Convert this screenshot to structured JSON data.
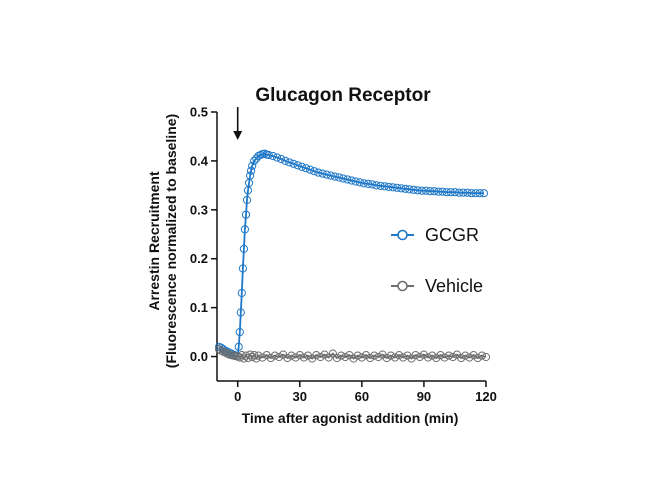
{
  "chart_data": {
    "type": "scatter",
    "title": "Glucagon Receptor",
    "xlabel": "Time after agonist addition (min)",
    "ylabel_line1": "Arrestin Recruitment",
    "ylabel_line2": "(Fluorescence normalized to baseline)",
    "xlim": [
      -10,
      120
    ],
    "ylim": [
      -0.05,
      0.5
    ],
    "x_ticks": [
      0,
      30,
      60,
      90,
      120
    ],
    "x_tick_labels": [
      "0",
      "30",
      "60",
      "90",
      "120"
    ],
    "y_ticks": [
      0.0,
      0.1,
      0.2,
      0.3,
      0.4,
      0.5
    ],
    "y_tick_labels": [
      "0.0",
      "0.1",
      "0.2",
      "0.3",
      "0.4",
      "0.5"
    ],
    "grid": false,
    "legend_position": "right",
    "annotation": {
      "type": "arrow",
      "x": 0
    },
    "series": [
      {
        "name": "GCGR",
        "color": "#1f78c8",
        "points": [
          [
            -9,
            0.02
          ],
          [
            -8,
            0.018
          ],
          [
            -7,
            0.015
          ],
          [
            -6,
            0.012
          ],
          [
            -5,
            0.01
          ],
          [
            -4,
            0.008
          ],
          [
            -3,
            0.006
          ],
          [
            -2,
            0.004
          ],
          [
            -1,
            0.002
          ],
          [
            0,
            0.0
          ],
          [
            0.5,
            0.02
          ],
          [
            1,
            0.05
          ],
          [
            1.5,
            0.09
          ],
          [
            2,
            0.13
          ],
          [
            2.5,
            0.18
          ],
          [
            3,
            0.22
          ],
          [
            3.5,
            0.26
          ],
          [
            4,
            0.29
          ],
          [
            4.5,
            0.32
          ],
          [
            5,
            0.34
          ],
          [
            5.5,
            0.355
          ],
          [
            6,
            0.37
          ],
          [
            6.5,
            0.38
          ],
          [
            7,
            0.39
          ],
          [
            8,
            0.4
          ],
          [
            9,
            0.405
          ],
          [
            10,
            0.41
          ],
          [
            11,
            0.412
          ],
          [
            12,
            0.414
          ],
          [
            13,
            0.415
          ],
          [
            14,
            0.413
          ],
          [
            15,
            0.412
          ],
          [
            17,
            0.41
          ],
          [
            19,
            0.407
          ],
          [
            21,
            0.404
          ],
          [
            23,
            0.4
          ],
          [
            25,
            0.397
          ],
          [
            27,
            0.394
          ],
          [
            29,
            0.391
          ],
          [
            31,
            0.388
          ],
          [
            33,
            0.385
          ],
          [
            35,
            0.382
          ],
          [
            37,
            0.379
          ],
          [
            39,
            0.376
          ],
          [
            41,
            0.374
          ],
          [
            43,
            0.372
          ],
          [
            45,
            0.37
          ],
          [
            47,
            0.368
          ],
          [
            49,
            0.366
          ],
          [
            51,
            0.364
          ],
          [
            53,
            0.362
          ],
          [
            55,
            0.36
          ],
          [
            57,
            0.358
          ],
          [
            59,
            0.356
          ],
          [
            61,
            0.354
          ],
          [
            63,
            0.353
          ],
          [
            65,
            0.352
          ],
          [
            67,
            0.35
          ],
          [
            69,
            0.349
          ],
          [
            71,
            0.348
          ],
          [
            73,
            0.347
          ],
          [
            75,
            0.346
          ],
          [
            77,
            0.345
          ],
          [
            79,
            0.344
          ],
          [
            81,
            0.343
          ],
          [
            83,
            0.342
          ],
          [
            85,
            0.341
          ],
          [
            87,
            0.34
          ],
          [
            89,
            0.339
          ],
          [
            91,
            0.339
          ],
          [
            93,
            0.338
          ],
          [
            95,
            0.338
          ],
          [
            97,
            0.337
          ],
          [
            99,
            0.337
          ],
          [
            101,
            0.336
          ],
          [
            103,
            0.336
          ],
          [
            105,
            0.336
          ],
          [
            107,
            0.335
          ],
          [
            109,
            0.335
          ],
          [
            111,
            0.335
          ],
          [
            113,
            0.334
          ],
          [
            115,
            0.334
          ],
          [
            117,
            0.334
          ],
          [
            119,
            0.334
          ]
        ]
      },
      {
        "name": "Vehicle",
        "color": "#6e6e6e",
        "points": [
          [
            -9,
            0.015
          ],
          [
            -8,
            0.012
          ],
          [
            -7,
            0.01
          ],
          [
            -6,
            0.008
          ],
          [
            -5,
            0.006
          ],
          [
            -4,
            0.004
          ],
          [
            -3,
            0.003
          ],
          [
            -2,
            0.002
          ],
          [
            -1,
            0.001
          ],
          [
            0,
            0.0
          ],
          [
            1,
            -0.002
          ],
          [
            2,
            0.003
          ],
          [
            3,
            -0.004
          ],
          [
            4,
            0.002
          ],
          [
            5,
            -0.003
          ],
          [
            6,
            0.004
          ],
          [
            7,
            -0.001
          ],
          [
            8,
            0.003
          ],
          [
            9,
            -0.004
          ],
          [
            10,
            0.002
          ],
          [
            12,
            -0.002
          ],
          [
            14,
            0.003
          ],
          [
            16,
            -0.003
          ],
          [
            18,
            0.002
          ],
          [
            20,
            -0.001
          ],
          [
            22,
            0.004
          ],
          [
            24,
            -0.003
          ],
          [
            26,
            0.002
          ],
          [
            28,
            -0.002
          ],
          [
            30,
            0.003
          ],
          [
            32,
            -0.002
          ],
          [
            34,
            0.002
          ],
          [
            36,
            -0.004
          ],
          [
            38,
            0.003
          ],
          [
            40,
            -0.001
          ],
          [
            42,
            0.004
          ],
          [
            44,
            -0.002
          ],
          [
            46,
            0.006
          ],
          [
            48,
            -0.003
          ],
          [
            50,
            0.002
          ],
          [
            52,
            -0.001
          ],
          [
            54,
            0.003
          ],
          [
            56,
            -0.004
          ],
          [
            58,
            0.002
          ],
          [
            60,
            -0.002
          ],
          [
            62,
            0.003
          ],
          [
            64,
            -0.003
          ],
          [
            66,
            0.002
          ],
          [
            68,
            -0.001
          ],
          [
            70,
            0.004
          ],
          [
            72,
            -0.003
          ],
          [
            74,
            0.002
          ],
          [
            76,
            -0.002
          ],
          [
            78,
            0.003
          ],
          [
            80,
            -0.002
          ],
          [
            82,
            0.002
          ],
          [
            84,
            -0.004
          ],
          [
            86,
            0.003
          ],
          [
            88,
            -0.001
          ],
          [
            90,
            0.004
          ],
          [
            92,
            -0.002
          ],
          [
            94,
            0.002
          ],
          [
            96,
            -0.003
          ],
          [
            98,
            0.003
          ],
          [
            100,
            -0.002
          ],
          [
            102,
            0.002
          ],
          [
            104,
            -0.001
          ],
          [
            106,
            0.004
          ],
          [
            108,
            -0.003
          ],
          [
            110,
            0.002
          ],
          [
            112,
            -0.002
          ],
          [
            114,
            0.003
          ],
          [
            116,
            -0.003
          ],
          [
            118,
            0.002
          ],
          [
            120,
            -0.001
          ]
        ]
      }
    ]
  }
}
